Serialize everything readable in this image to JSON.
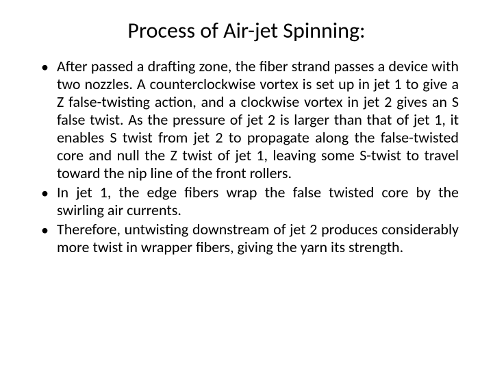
{
  "slide": {
    "title": "Process of Air-jet Spinning:",
    "bullets": [
      "After passed a drafting zone, the fiber strand passes a device with two nozzles. A counterclockwise vortex is set up in jet 1 to give a Z false-twisting action, and a clockwise vortex in jet 2 gives an S false twist. As the pressure of jet 2 is larger than that of jet 1, it enables S twist from jet 2 to propagate along the false-twisted core and null the Z twist of jet 1, leaving some S-twist to travel toward the nip line of the front rollers.",
      "In jet 1, the edge fibers wrap the false twisted core by the swirling air currents.",
      "Therefore, untwisting downstream of jet 2 produces considerably more twist in wrapper fibers, giving the yarn its strength."
    ]
  },
  "style": {
    "background_color": "#ffffff",
    "text_color": "#000000",
    "title_fontsize": 32,
    "body_fontsize": 22,
    "bullet_char": "•"
  }
}
